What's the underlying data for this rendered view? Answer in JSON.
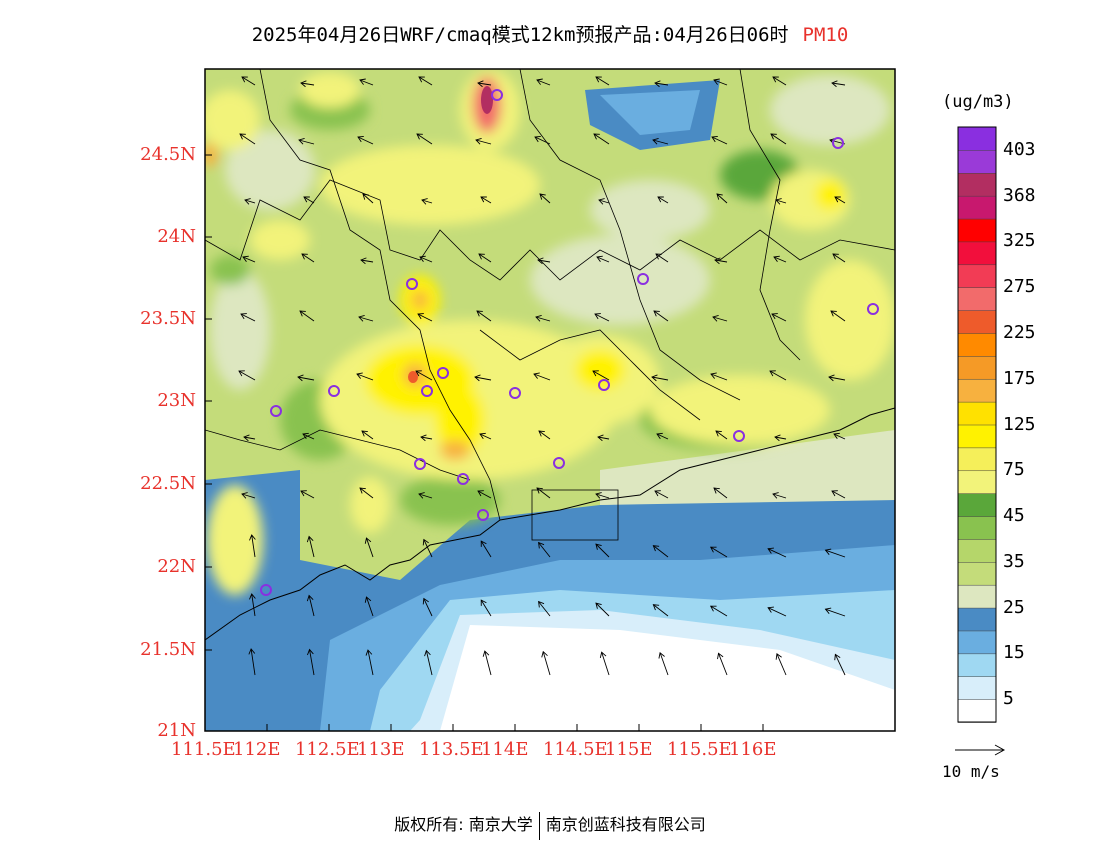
{
  "title": {
    "main": "2025年04月26日WRF/cmaq模式12km预报产品:04月26日06时",
    "variable": "PM10"
  },
  "map": {
    "lat_labels": [
      "24.5N",
      "24N",
      "23.5N",
      "23N",
      "22.5N",
      "22N",
      "21.5N",
      "21N"
    ],
    "lon_labels": [
      "111.5E",
      "112E",
      "112.5E",
      "113E",
      "113.5E",
      "114E",
      "114.5E",
      "115E",
      "115.5E",
      "116E"
    ],
    "colors": {
      "sea_deep": "#4a8bc4",
      "sea_mid": "#6aaee0",
      "sea_light": "#9fd8f2",
      "sea_pale": "#d8eefa",
      "land_low": "#dde7c0",
      "land_green": "#c4dc7a",
      "land_dark": "#89c24f",
      "land_darkest": "#5aa73a",
      "yellow_light": "#f2f37a",
      "yellow": "#fff200",
      "orange": "#f7b13f",
      "red": "#f26b6b",
      "magenta": "#b22e61"
    }
  },
  "colorbar": {
    "unit": "(ug/m3)",
    "labels": [
      "403",
      "368",
      "325",
      "275",
      "225",
      "175",
      "125",
      "75",
      "45",
      "35",
      "25",
      "15",
      "5"
    ],
    "colors": [
      "#ffffff",
      "#d8eefa",
      "#9fd8f2",
      "#6aaee0",
      "#4a8bc4",
      "#dde7c0",
      "#c4dc7a",
      "#b5d66a",
      "#89c24f",
      "#5aa73a",
      "#f2f37a",
      "#f5ef5a",
      "#fff200",
      "#ffe100",
      "#f7b13f",
      "#f59a26",
      "#ff8a00",
      "#ee5b2b",
      "#f26b6b",
      "#f23c55",
      "#f20f3c",
      "#ff0000",
      "#c8186e",
      "#b22e61",
      "#9a3ad8",
      "#8a2fe0"
    ]
  },
  "wind": {
    "legend_label": "10 m/s"
  },
  "footer": {
    "copyright": "版权所有: 南京大学",
    "company": "南京创蓝科技有限公司"
  }
}
